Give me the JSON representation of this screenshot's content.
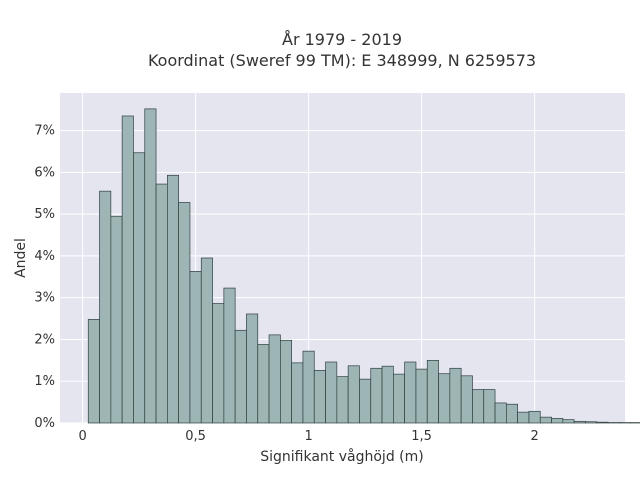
{
  "chart_data": {
    "type": "bar",
    "title_line1": "År 1979 - 2019",
    "title_line2": "Koordinat (Sweref 99 TM): E 348999, N 6259573",
    "xlabel": "Signifikant våghöjd (m)",
    "ylabel": "Andel",
    "x_range": [
      -0.1,
      2.4
    ],
    "y_range": [
      0,
      0.079
    ],
    "bin_start": 0.025,
    "bin_width": 0.05,
    "values": [
      0.0248,
      0.0555,
      0.0495,
      0.0735,
      0.0647,
      0.0752,
      0.0572,
      0.0593,
      0.0528,
      0.0363,
      0.0395,
      0.0286,
      0.0323,
      0.0222,
      0.0261,
      0.0188,
      0.0211,
      0.0198,
      0.0144,
      0.0172,
      0.0126,
      0.0146,
      0.0111,
      0.0137,
      0.0105,
      0.0131,
      0.0136,
      0.0117,
      0.0146,
      0.0129,
      0.015,
      0.0118,
      0.0131,
      0.0113,
      0.008,
      0.008,
      0.0048,
      0.0045,
      0.0026,
      0.0028,
      0.0014,
      0.0011,
      0.0008,
      0.0004,
      0.0003,
      0.0002,
      0.0001,
      0.0001,
      0.0001,
      0.0001
    ],
    "x_ticks": [
      {
        "value": 0,
        "label": "0"
      },
      {
        "value": 0.5,
        "label": "0,5"
      },
      {
        "value": 1,
        "label": "1"
      },
      {
        "value": 1.5,
        "label": "1,5"
      },
      {
        "value": 2,
        "label": "2"
      }
    ],
    "y_ticks": [
      {
        "value": 0,
        "label": "0%"
      },
      {
        "value": 0.01,
        "label": "1%"
      },
      {
        "value": 0.02,
        "label": "2%"
      },
      {
        "value": 0.03,
        "label": "3%"
      },
      {
        "value": 0.04,
        "label": "4%"
      },
      {
        "value": 0.05,
        "label": "5%"
      },
      {
        "value": 0.06,
        "label": "6%"
      },
      {
        "value": 0.07,
        "label": "7%"
      }
    ],
    "grid": true,
    "colors": {
      "plot_bg": "#e5e5f0",
      "grid": "#ffffff",
      "bar_fill": "#9db5b5",
      "bar_stroke": "#2f3f3f"
    }
  }
}
